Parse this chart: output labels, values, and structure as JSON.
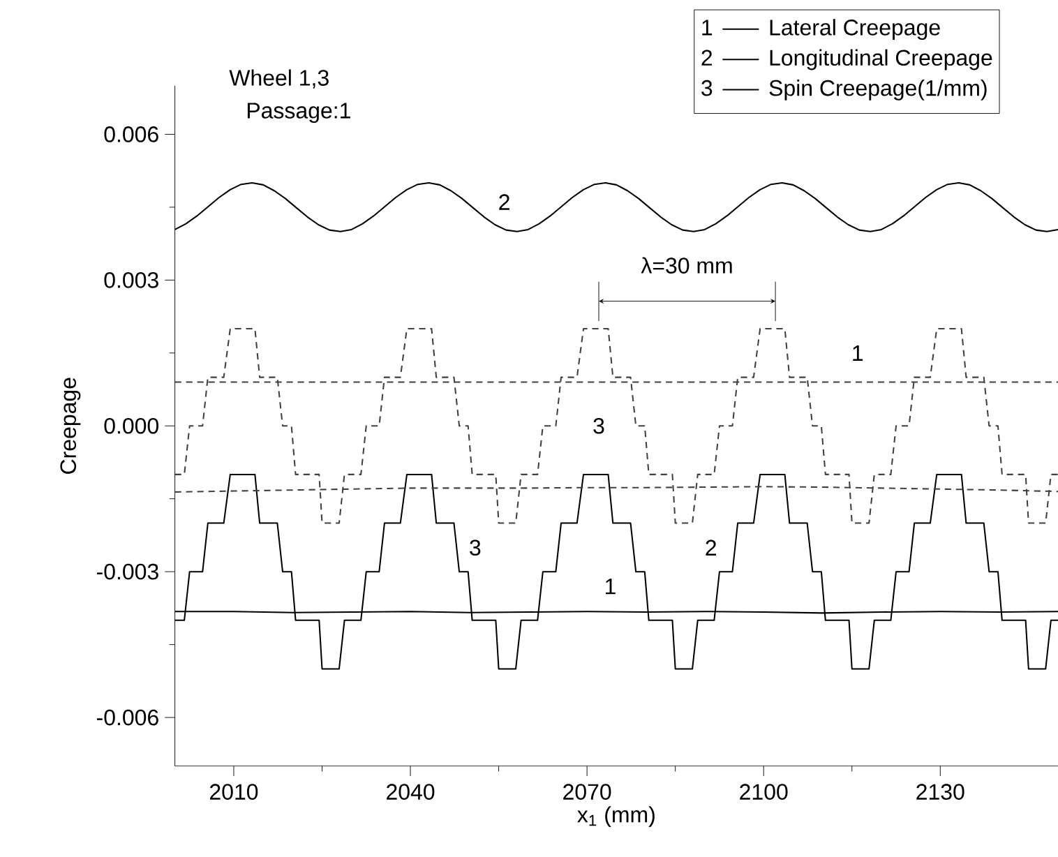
{
  "chart_data": {
    "type": "line",
    "title": "Wheel 1,3",
    "subtitle": "Passage:1",
    "xlabel": "x$_{1}$ (mm)",
    "ylabel": "Creepage",
    "xlim": [
      2000,
      2150
    ],
    "ylim": [
      -0.007,
      0.007
    ],
    "xticks": [
      2010,
      2040,
      2070,
      2100,
      2130
    ],
    "yticks": [
      -0.006,
      -0.003,
      {
        "value": 0,
        "label": "0.000"
      },
      0.003,
      0.006
    ],
    "legend": "top right",
    "marker": "none",
    "grid": false,
    "annotations": [
      "1",
      "2",
      "3",
      "2",
      "1",
      "3",
      "3",
      "2",
      "1",
      "λ=30 mm"
    ],
    "series": [
      {
        "name": "Lateral Creepage",
        "color": "#000000",
        "line_style": "solid",
        "x": [
          2000,
          2010,
          2020,
          2030,
          2040,
          2050,
          2060,
          2070,
          2080,
          2090,
          2100,
          2110,
          2120,
          2130,
          2140,
          2150
        ],
        "values": [
          -0.00382,
          -0.00382,
          -0.00384,
          -0.00383,
          -0.00382,
          -0.00384,
          -0.00383,
          -0.00382,
          -0.00383,
          -0.00382,
          -0.00383,
          -0.00385,
          -0.00383,
          -0.00382,
          -0.00383,
          -0.00382
        ]
      },
      {
        "name": "Longitudinal Creepage",
        "color": "#000000",
        "line_style": "solid",
        "x": [
          2000,
          2001.875,
          2003.75,
          2005.625,
          2007.5,
          2009.375,
          2011.25,
          2013.125,
          2015,
          2016.875,
          2018.75,
          2020.625,
          2022.5,
          2024.375,
          2026.25,
          2028.125,
          2030,
          2031.875,
          2033.75,
          2035.625,
          2037.5,
          2039.375,
          2041.25,
          2043.125,
          2045,
          2046.875,
          2048.75,
          2050.625,
          2052.5,
          2054.375,
          2056.25,
          2058.125,
          2060,
          2061.875,
          2063.75,
          2065.625,
          2067.5,
          2069.375,
          2071.25,
          2073.125,
          2075,
          2076.875,
          2078.75,
          2080.625,
          2082.5,
          2084.375,
          2086.25,
          2088.125,
          2090,
          2091.875,
          2093.75,
          2095.625,
          2097.5,
          2099.375,
          2101.25,
          2103.125,
          2105,
          2106.875,
          2108.75,
          2110.625,
          2112.5,
          2114.375,
          2116.25,
          2118.125,
          2120,
          2121.875,
          2123.75,
          2125.625,
          2127.5,
          2129.375,
          2131.25,
          2133.125,
          2135,
          2136.875,
          2138.75,
          2140.625,
          2142.5,
          2144.375,
          2146.25,
          2148.125,
          2150
        ],
        "values": [
          0.00404,
          0.00416,
          0.00432,
          0.00451,
          0.0047,
          0.00486,
          0.00497,
          0.005,
          0.00496,
          0.00484,
          0.00468,
          0.00449,
          0.0043,
          0.00414,
          0.00403,
          0.004,
          0.00404,
          0.00416,
          0.00432,
          0.00451,
          0.0047,
          0.00486,
          0.00497,
          0.005,
          0.00496,
          0.00484,
          0.00468,
          0.00449,
          0.0043,
          0.00414,
          0.00403,
          0.004,
          0.00404,
          0.00416,
          0.00432,
          0.00451,
          0.0047,
          0.00486,
          0.00497,
          0.005,
          0.00496,
          0.00484,
          0.00468,
          0.00449,
          0.0043,
          0.00414,
          0.00403,
          0.004,
          0.00404,
          0.00416,
          0.00432,
          0.00451,
          0.0047,
          0.00486,
          0.00497,
          0.005,
          0.00496,
          0.00484,
          0.00468,
          0.00449,
          0.0043,
          0.00414,
          0.00403,
          0.004,
          0.00404,
          0.00416,
          0.00432,
          0.00451,
          0.0047,
          0.00486,
          0.00497,
          0.005,
          0.00496,
          0.00484,
          0.00468,
          0.00449,
          0.0043,
          0.00414,
          0.00403,
          0.004,
          0.00404
        ]
      },
      {
        "name": "Spin Creepage(1/mm)",
        "color": "#000000",
        "line_style": "solid",
        "x": [
          2000,
          2001.6,
          2002.5,
          2004.7,
          2005.6,
          2008.3,
          2009.4,
          2013.6,
          2014.4,
          2017.4,
          2018.3,
          2019.8,
          2020.5,
          2024.5,
          2025,
          2027.9,
          2028.8,
          2031.6,
          2032.5,
          2034.7,
          2035.6,
          2038.3,
          2039.4,
          2043.6,
          2044.4,
          2047.4,
          2048.3,
          2049.8,
          2050.5,
          2054.5,
          2055,
          2057.9,
          2058.8,
          2061.6,
          2062.5,
          2064.7,
          2065.6,
          2068.3,
          2069.4,
          2073.6,
          2074.4,
          2077.4,
          2078.3,
          2079.8,
          2080.5,
          2084.5,
          2085,
          2087.9,
          2088.8,
          2091.6,
          2092.5,
          2094.7,
          2095.6,
          2098.3,
          2099.4,
          2103.6,
          2104.4,
          2107.4,
          2108.3,
          2109.8,
          2110.5,
          2114.5,
          2115,
          2117.9,
          2118.8,
          2121.6,
          2122.5,
          2124.7,
          2125.6,
          2128.3,
          2129.4,
          2133.6,
          2134.4,
          2137.4,
          2138.3,
          2139.8,
          2140.5,
          2144.5,
          2145,
          2147.9,
          2148.8,
          2150
        ],
        "values": [
          -0.004,
          -0.004,
          -0.003,
          -0.003,
          -0.002,
          -0.002,
          -0.001,
          -0.001,
          -0.002,
          -0.002,
          -0.003,
          -0.003,
          -0.004,
          -0.004,
          -0.005,
          -0.005,
          -0.004,
          -0.004,
          -0.003,
          -0.003,
          -0.002,
          -0.002,
          -0.001,
          -0.001,
          -0.002,
          -0.002,
          -0.003,
          -0.003,
          -0.004,
          -0.004,
          -0.005,
          -0.005,
          -0.004,
          -0.004,
          -0.003,
          -0.003,
          -0.002,
          -0.002,
          -0.001,
          -0.001,
          -0.002,
          -0.002,
          -0.003,
          -0.003,
          -0.004,
          -0.004,
          -0.005,
          -0.005,
          -0.004,
          -0.004,
          -0.003,
          -0.003,
          -0.002,
          -0.002,
          -0.001,
          -0.001,
          -0.002,
          -0.002,
          -0.003,
          -0.003,
          -0.004,
          -0.004,
          -0.005,
          -0.005,
          -0.004,
          -0.004,
          -0.003,
          -0.003,
          -0.002,
          -0.002,
          -0.001,
          -0.001,
          -0.002,
          -0.002,
          -0.003,
          -0.003,
          -0.004,
          -0.004,
          -0.005,
          -0.005,
          -0.004,
          -0.004
        ]
      },
      {
        "color": "#404040",
        "line_style": "dashed",
        "x": [
          2000,
          2030,
          2060,
          2090,
          2120,
          2150
        ],
        "values": [
          0.0009,
          0.0009,
          0.0009,
          0.0009,
          0.0009,
          0.0009
        ]
      },
      {
        "color": "#404040",
        "line_style": "dashed",
        "x": [
          2000,
          2010,
          2020,
          2030,
          2040,
          2050,
          2060,
          2070,
          2080,
          2090,
          2100,
          2110,
          2120,
          2130,
          2140,
          2150
        ],
        "values": [
          -0.00136,
          -0.00134,
          -0.00132,
          -0.0013,
          -0.00128,
          -0.00128,
          -0.00128,
          -0.00127,
          -0.00127,
          -0.00126,
          -0.00125,
          -0.00126,
          -0.00128,
          -0.0013,
          -0.00132,
          -0.00135
        ]
      },
      {
        "color": "#404040",
        "line_style": "dashed",
        "x": [
          2000,
          2001.6,
          2002.5,
          2004.7,
          2005.6,
          2008.3,
          2009.4,
          2013.6,
          2014.4,
          2017.4,
          2018.3,
          2019.8,
          2020.5,
          2024.5,
          2025,
          2027.9,
          2028.8,
          2031.6,
          2032.5,
          2034.7,
          2035.6,
          2038.3,
          2039.4,
          2043.6,
          2044.4,
          2047.4,
          2048.3,
          2049.8,
          2050.5,
          2054.5,
          2055,
          2057.9,
          2058.8,
          2061.6,
          2062.5,
          2064.7,
          2065.6,
          2068.3,
          2069.4,
          2073.6,
          2074.4,
          2077.4,
          2078.3,
          2079.8,
          2080.5,
          2084.5,
          2085,
          2087.9,
          2088.8,
          2091.6,
          2092.5,
          2094.7,
          2095.6,
          2098.3,
          2099.4,
          2103.6,
          2104.4,
          2107.4,
          2108.3,
          2109.8,
          2110.5,
          2114.5,
          2115,
          2117.9,
          2118.8,
          2121.6,
          2122.5,
          2124.7,
          2125.6,
          2128.3,
          2129.4,
          2133.6,
          2134.4,
          2137.4,
          2138.3,
          2139.8,
          2140.5,
          2144.5,
          2145,
          2147.9,
          2148.8,
          2150
        ],
        "values": [
          -0.001,
          -0.001,
          0.0,
          0.0,
          0.001,
          0.001,
          0.002,
          0.002,
          0.001,
          0.001,
          0.0,
          0.0,
          -0.001,
          -0.001,
          -0.002,
          -0.002,
          -0.001,
          -0.001,
          0.0,
          0.0,
          0.001,
          0.001,
          0.002,
          0.002,
          0.001,
          0.001,
          0.0,
          0.0,
          -0.001,
          -0.001,
          -0.002,
          -0.002,
          -0.001,
          -0.001,
          0.0,
          0.0,
          0.001,
          0.001,
          0.002,
          0.002,
          0.001,
          0.001,
          0.0,
          0.0,
          -0.001,
          -0.001,
          -0.002,
          -0.002,
          -0.001,
          -0.001,
          0.0,
          0.0,
          0.001,
          0.001,
          0.002,
          0.002,
          0.001,
          0.001,
          0.0,
          0.0,
          -0.001,
          -0.001,
          -0.002,
          -0.002,
          -0.001,
          -0.001,
          0.0,
          0.0,
          0.001,
          0.001,
          0.002,
          0.002,
          0.001,
          0.001,
          0.0,
          0.0,
          -0.001,
          -0.001,
          -0.002,
          -0.002,
          -0.001,
          -0.001
        ]
      }
    ]
  }
}
